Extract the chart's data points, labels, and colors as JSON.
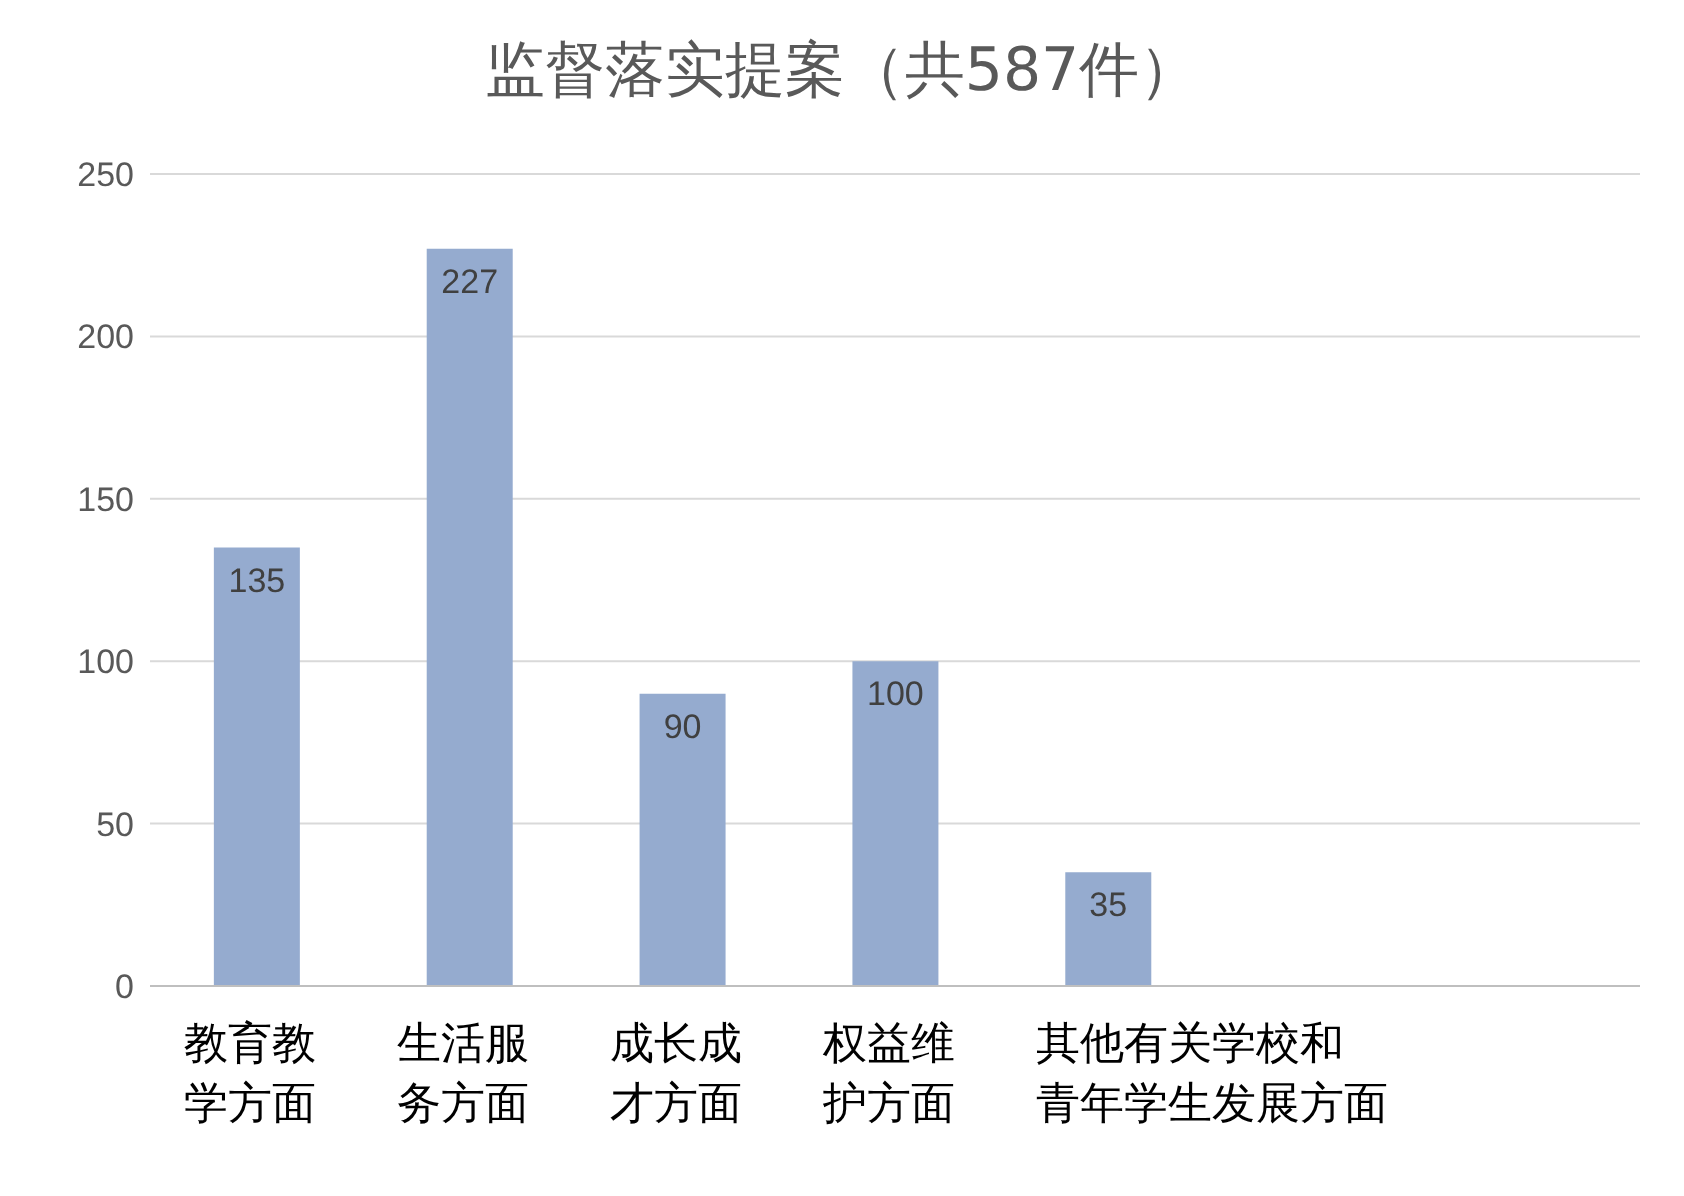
{
  "chart_data": {
    "type": "bar",
    "title": "监督落实提案（共587件）",
    "categories": [
      "教育教学方面",
      "生活服务方面",
      "成长成才方面",
      "权益维护方面",
      "其他有关学校和青年学生发展方面",
      null,
      null
    ],
    "values": [
      135,
      227,
      90,
      100,
      35,
      null,
      null
    ],
    "color": "#95abcf",
    "ylim": [
      0,
      250
    ],
    "yticks": [
      0,
      50,
      100,
      150,
      200,
      250
    ],
    "grid": "y",
    "data_labels": true,
    "legend": false
  }
}
